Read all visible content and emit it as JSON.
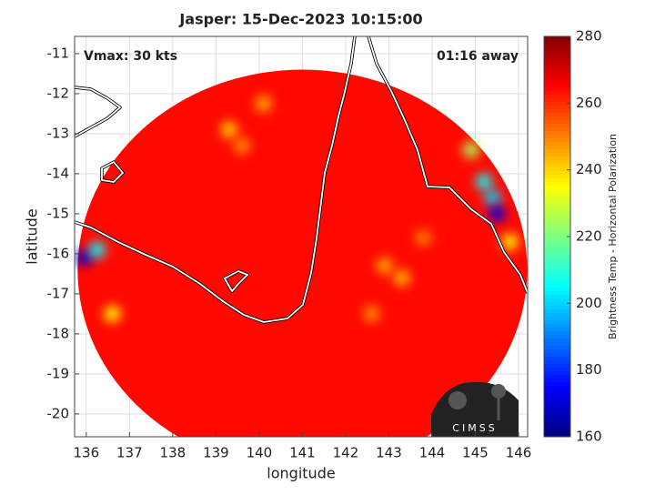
{
  "chart_data": {
    "type": "heatmap",
    "title": "Jasper: 15-Dec-2023 10:15:00",
    "annotations": [
      "Vmax: 30 kts",
      "01:16 away"
    ],
    "xlabel": "longitude",
    "ylabel": "latitude",
    "xlim": [
      135.73,
      146.21
    ],
    "ylim": [
      -20.57,
      -10.57
    ],
    "xticks": [
      136,
      137,
      138,
      139,
      140,
      141,
      142,
      143,
      144,
      145,
      146
    ],
    "yticks": [
      -11,
      -12,
      -13,
      -14,
      -15,
      -16,
      -17,
      -18,
      -19,
      -20
    ],
    "grid": true,
    "colorbar": {
      "label": "Brightness Temp - Horizontal Polarization",
      "lim": [
        160,
        280
      ],
      "ticks": [
        160,
        180,
        200,
        220,
        240,
        260,
        280
      ],
      "colormap": "jet"
    },
    "swath": {
      "center_lon": 141.0,
      "center_lat": -16.4,
      "radius_lon": 5.2,
      "radius_lat": 5.0,
      "value": 264
    },
    "hotspots": [
      {
        "lon": 135.95,
        "lat": -16.1,
        "value": 170
      },
      {
        "lon": 136.25,
        "lat": -15.9,
        "value": 205
      },
      {
        "lon": 136.6,
        "lat": -17.5,
        "value": 235
      },
      {
        "lon": 139.3,
        "lat": -12.9,
        "value": 240
      },
      {
        "lon": 140.1,
        "lat": -12.25,
        "value": 245
      },
      {
        "lon": 139.6,
        "lat": -13.3,
        "value": 248
      },
      {
        "lon": 144.9,
        "lat": -13.4,
        "value": 225
      },
      {
        "lon": 145.2,
        "lat": -14.2,
        "value": 205
      },
      {
        "lon": 145.4,
        "lat": -14.6,
        "value": 200
      },
      {
        "lon": 145.5,
        "lat": -15.0,
        "value": 172
      },
      {
        "lon": 145.8,
        "lat": -15.7,
        "value": 235
      },
      {
        "lon": 142.9,
        "lat": -16.3,
        "value": 245
      },
      {
        "lon": 143.3,
        "lat": -16.6,
        "value": 243
      },
      {
        "lon": 142.6,
        "lat": -17.5,
        "value": 248
      },
      {
        "lon": 143.8,
        "lat": -15.6,
        "value": 250
      }
    ],
    "logo": "CIMSS"
  }
}
